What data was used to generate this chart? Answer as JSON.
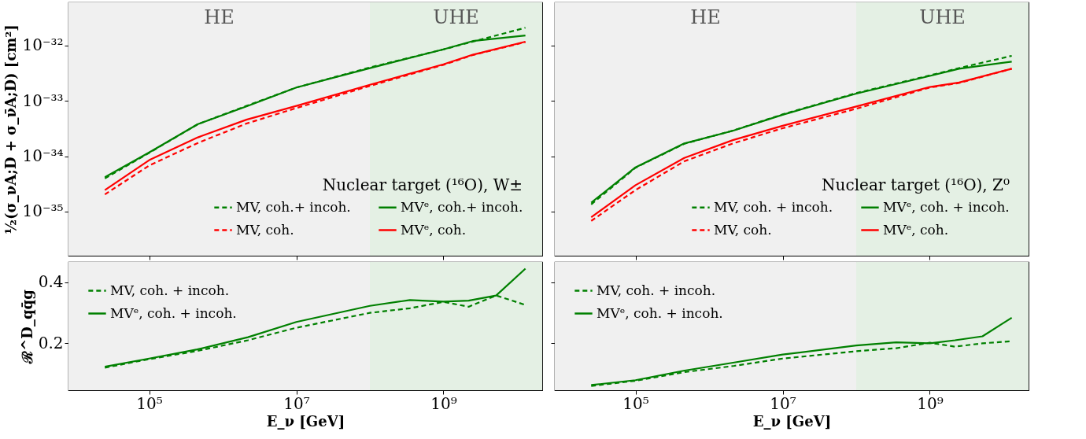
{
  "chart_data": [
    {
      "type": "line",
      "ylabel": "½(σ_νA;D + σ_ν̄A;D) [cm²]",
      "legend_title": "Nuclear target (¹⁶O), W±",
      "log": "xy",
      "grid": false,
      "legend": "bottom right",
      "tick_labels": "y",
      "xlim": [
        8000,
        22000000000
      ],
      "xticks": [
        {
          "value": 100000,
          "label": null
        },
        {
          "value": 10000000,
          "label": null
        },
        {
          "value": 1000000000,
          "label": null
        }
      ],
      "ylim": [
        1.6e-36,
        6e-32
      ],
      "yticks": [
        {
          "value": 1e-35,
          "label": "10⁻³⁵"
        },
        {
          "value": 1e-34,
          "label": "10⁻³⁴"
        },
        {
          "value": 1e-33,
          "label": "10⁻³³"
        },
        {
          "value": 1e-32,
          "label": "10⁻³²"
        }
      ],
      "bands": [
        {
          "axis": "x",
          "from": 8000,
          "to": 100000000,
          "label": "HE",
          "color": "#f0f0f0"
        },
        {
          "axis": "x",
          "from": 100000000,
          "to": 22000000000,
          "label": "UHE",
          "color": "#e4f0e4"
        }
      ],
      "x": [
        25000,
        100000,
        460000,
        2100000,
        10000000,
        100000000,
        1000000000,
        2500000000,
        13000000000
      ],
      "series": [
        {
          "name": "MV, coh.+ incoh.",
          "color": "#008000",
          "line_style": "dashed",
          "values": [
            3.98e-35,
            1.15e-34,
            3.8e-34,
            8.1e-34,
            1.74e-33,
            4e-33,
            8.5e-33,
            1.17e-32,
            2.09e-32
          ]
        },
        {
          "name": "MV, coh.",
          "color": "#ff0000",
          "line_style": "dashed",
          "values": [
            2.04e-35,
            6.8e-35,
            1.74e-34,
            3.89e-34,
            7.4e-34,
            1.86e-33,
            4.47e-33,
            6.7e-33,
            1.15e-32
          ]
        },
        {
          "name": "MVᵉ, coh.+ incoh.",
          "color": "#008000",
          "line_style": "solid",
          "values": [
            4.17e-35,
            1.17e-34,
            3.8e-34,
            7.94e-34,
            1.74e-33,
            3.89e-33,
            8.51e-33,
            1.2e-32,
            1.51e-32
          ]
        },
        {
          "name": "MVᵉ, coh.",
          "color": "#ff0000",
          "line_style": "solid",
          "values": [
            2.45e-35,
            8.5e-35,
            2.19e-34,
            4.57e-34,
            8.1e-34,
            1.95e-33,
            4.57e-33,
            6.8e-33,
            1.17e-32
          ]
        }
      ]
    },
    {
      "type": "line",
      "legend_title": "Nuclear target (¹⁶O), Z⁰",
      "log": "xy",
      "grid": false,
      "legend": "bottom right",
      "tick_labels": false,
      "xlim": [
        8000,
        22000000000
      ],
      "xticks": [
        {
          "value": 100000,
          "label": null
        },
        {
          "value": 10000000,
          "label": null
        },
        {
          "value": 1000000000,
          "label": null
        }
      ],
      "ylim": [
        1.6e-36,
        6e-32
      ],
      "yticks": [
        {
          "value": 1e-35,
          "label": null
        },
        {
          "value": 1e-34,
          "label": null
        },
        {
          "value": 1e-33,
          "label": null
        },
        {
          "value": 1e-32,
          "label": null
        }
      ],
      "bands": [
        {
          "axis": "x",
          "from": 8000,
          "to": 100000000,
          "label": "HE",
          "color": "#f0f0f0"
        },
        {
          "axis": "x",
          "from": 100000000,
          "to": 22000000000,
          "label": "UHE",
          "color": "#e4f0e4"
        }
      ],
      "x": [
        25000,
        100000,
        460000,
        2100000,
        10000000,
        100000000,
        1000000000,
        2500000000,
        13000000000
      ],
      "series": [
        {
          "name": "MV, coh. + incoh.",
          "color": "#008000",
          "line_style": "dashed",
          "values": [
            1.35e-35,
            6.2e-35,
            1.68e-34,
            2.9e-34,
            5.7e-34,
            1.38e-33,
            2.88e-33,
            3.9e-33,
            6.5e-33
          ]
        },
        {
          "name": "MV, coh.",
          "color": "#ff0000",
          "line_style": "dashed",
          "values": [
            6.8e-36,
            2.45e-35,
            8.1e-35,
            1.7e-34,
            3.2e-34,
            7.2e-34,
            1.74e-33,
            2.1e-33,
            3.8e-33
          ]
        },
        {
          "name": "MVᵉ, coh. + incoh.",
          "color": "#008000",
          "line_style": "solid",
          "values": [
            1.45e-35,
            6.3e-35,
            1.7e-34,
            2.88e-34,
            5.6e-34,
            1.35e-33,
            2.82e-33,
            3.8e-33,
            5.1e-33
          ]
        },
        {
          "name": "MVᵉ, coh.",
          "color": "#ff0000",
          "line_style": "solid",
          "values": [
            7.9e-36,
            3e-35,
            9.3e-35,
            1.95e-34,
            3.55e-34,
            7.9e-34,
            1.78e-33,
            2.14e-33,
            3.8e-33
          ]
        }
      ]
    },
    {
      "type": "line",
      "xlabel": "E_ν [GeV]",
      "ylabel": "ℛ^D_qq̄g",
      "log": "x",
      "grid": false,
      "legend": "top left",
      "xlim": [
        8000,
        22000000000
      ],
      "xticks": [
        {
          "value": 100000,
          "label": "10⁵"
        },
        {
          "value": 10000000,
          "label": "10⁷"
        },
        {
          "value": 1000000000,
          "label": "10⁹"
        }
      ],
      "ylim": [
        0.046,
        0.467
      ],
      "yticks": [
        0.2,
        0.4
      ],
      "bands": [
        {
          "axis": "x",
          "from": 8000,
          "to": 100000000,
          "color": "#f0f0f0"
        },
        {
          "axis": "x",
          "from": 100000000,
          "to": 22000000000,
          "color": "#e4f0e4"
        }
      ],
      "x": [
        25000,
        100000,
        450000,
        2200000,
        10000000,
        100000000,
        350000000,
        1000000000,
        2200000000,
        5200000000,
        13000000000
      ],
      "series": [
        {
          "name": "MV, coh. + incoh.",
          "color": "#008000",
          "line_style": "dashed",
          "values": [
            0.12,
            0.148,
            0.175,
            0.21,
            0.251,
            0.3,
            0.315,
            0.336,
            0.32,
            0.357,
            0.326
          ]
        },
        {
          "name": "MVᵉ, coh. + incoh.",
          "color": "#008000",
          "line_style": "solid",
          "values": [
            0.123,
            0.15,
            0.18,
            0.22,
            0.27,
            0.323,
            0.342,
            0.337,
            0.34,
            0.357,
            0.445
          ]
        }
      ]
    },
    {
      "type": "line",
      "xlabel": "E_ν [GeV]",
      "log": "x",
      "grid": false,
      "legend": "top left",
      "tick_labels": "x",
      "xlim": [
        8000,
        22000000000
      ],
      "xticks": [
        {
          "value": 100000,
          "label": "10⁵"
        },
        {
          "value": 10000000,
          "label": "10⁷"
        },
        {
          "value": 1000000000,
          "label": "10⁹"
        }
      ],
      "ylim": [
        0.046,
        0.467
      ],
      "yticks": [
        {
          "value": 0.2,
          "label": null
        },
        {
          "value": 0.4,
          "label": null
        }
      ],
      "bands": [
        {
          "axis": "x",
          "from": 8000,
          "to": 100000000,
          "color": "#f0f0f0"
        },
        {
          "axis": "x",
          "from": 100000000,
          "to": 22000000000,
          "color": "#e4f0e4"
        }
      ],
      "x": [
        25000,
        100000,
        450000,
        2200000,
        10000000,
        100000000,
        350000000,
        1000000000,
        2200000000,
        5200000000,
        13000000000
      ],
      "series": [
        {
          "name": "MV, coh. + incoh.",
          "color": "#008000",
          "line_style": "dashed",
          "values": [
            0.06,
            0.077,
            0.105,
            0.126,
            0.15,
            0.174,
            0.184,
            0.202,
            0.189,
            0.2,
            0.207
          ]
        },
        {
          "name": "MVᵉ, coh. + incoh.",
          "color": "#008000",
          "line_style": "solid",
          "values": [
            0.063,
            0.079,
            0.11,
            0.137,
            0.163,
            0.193,
            0.203,
            0.2,
            0.21,
            0.223,
            0.284
          ]
        }
      ]
    }
  ]
}
